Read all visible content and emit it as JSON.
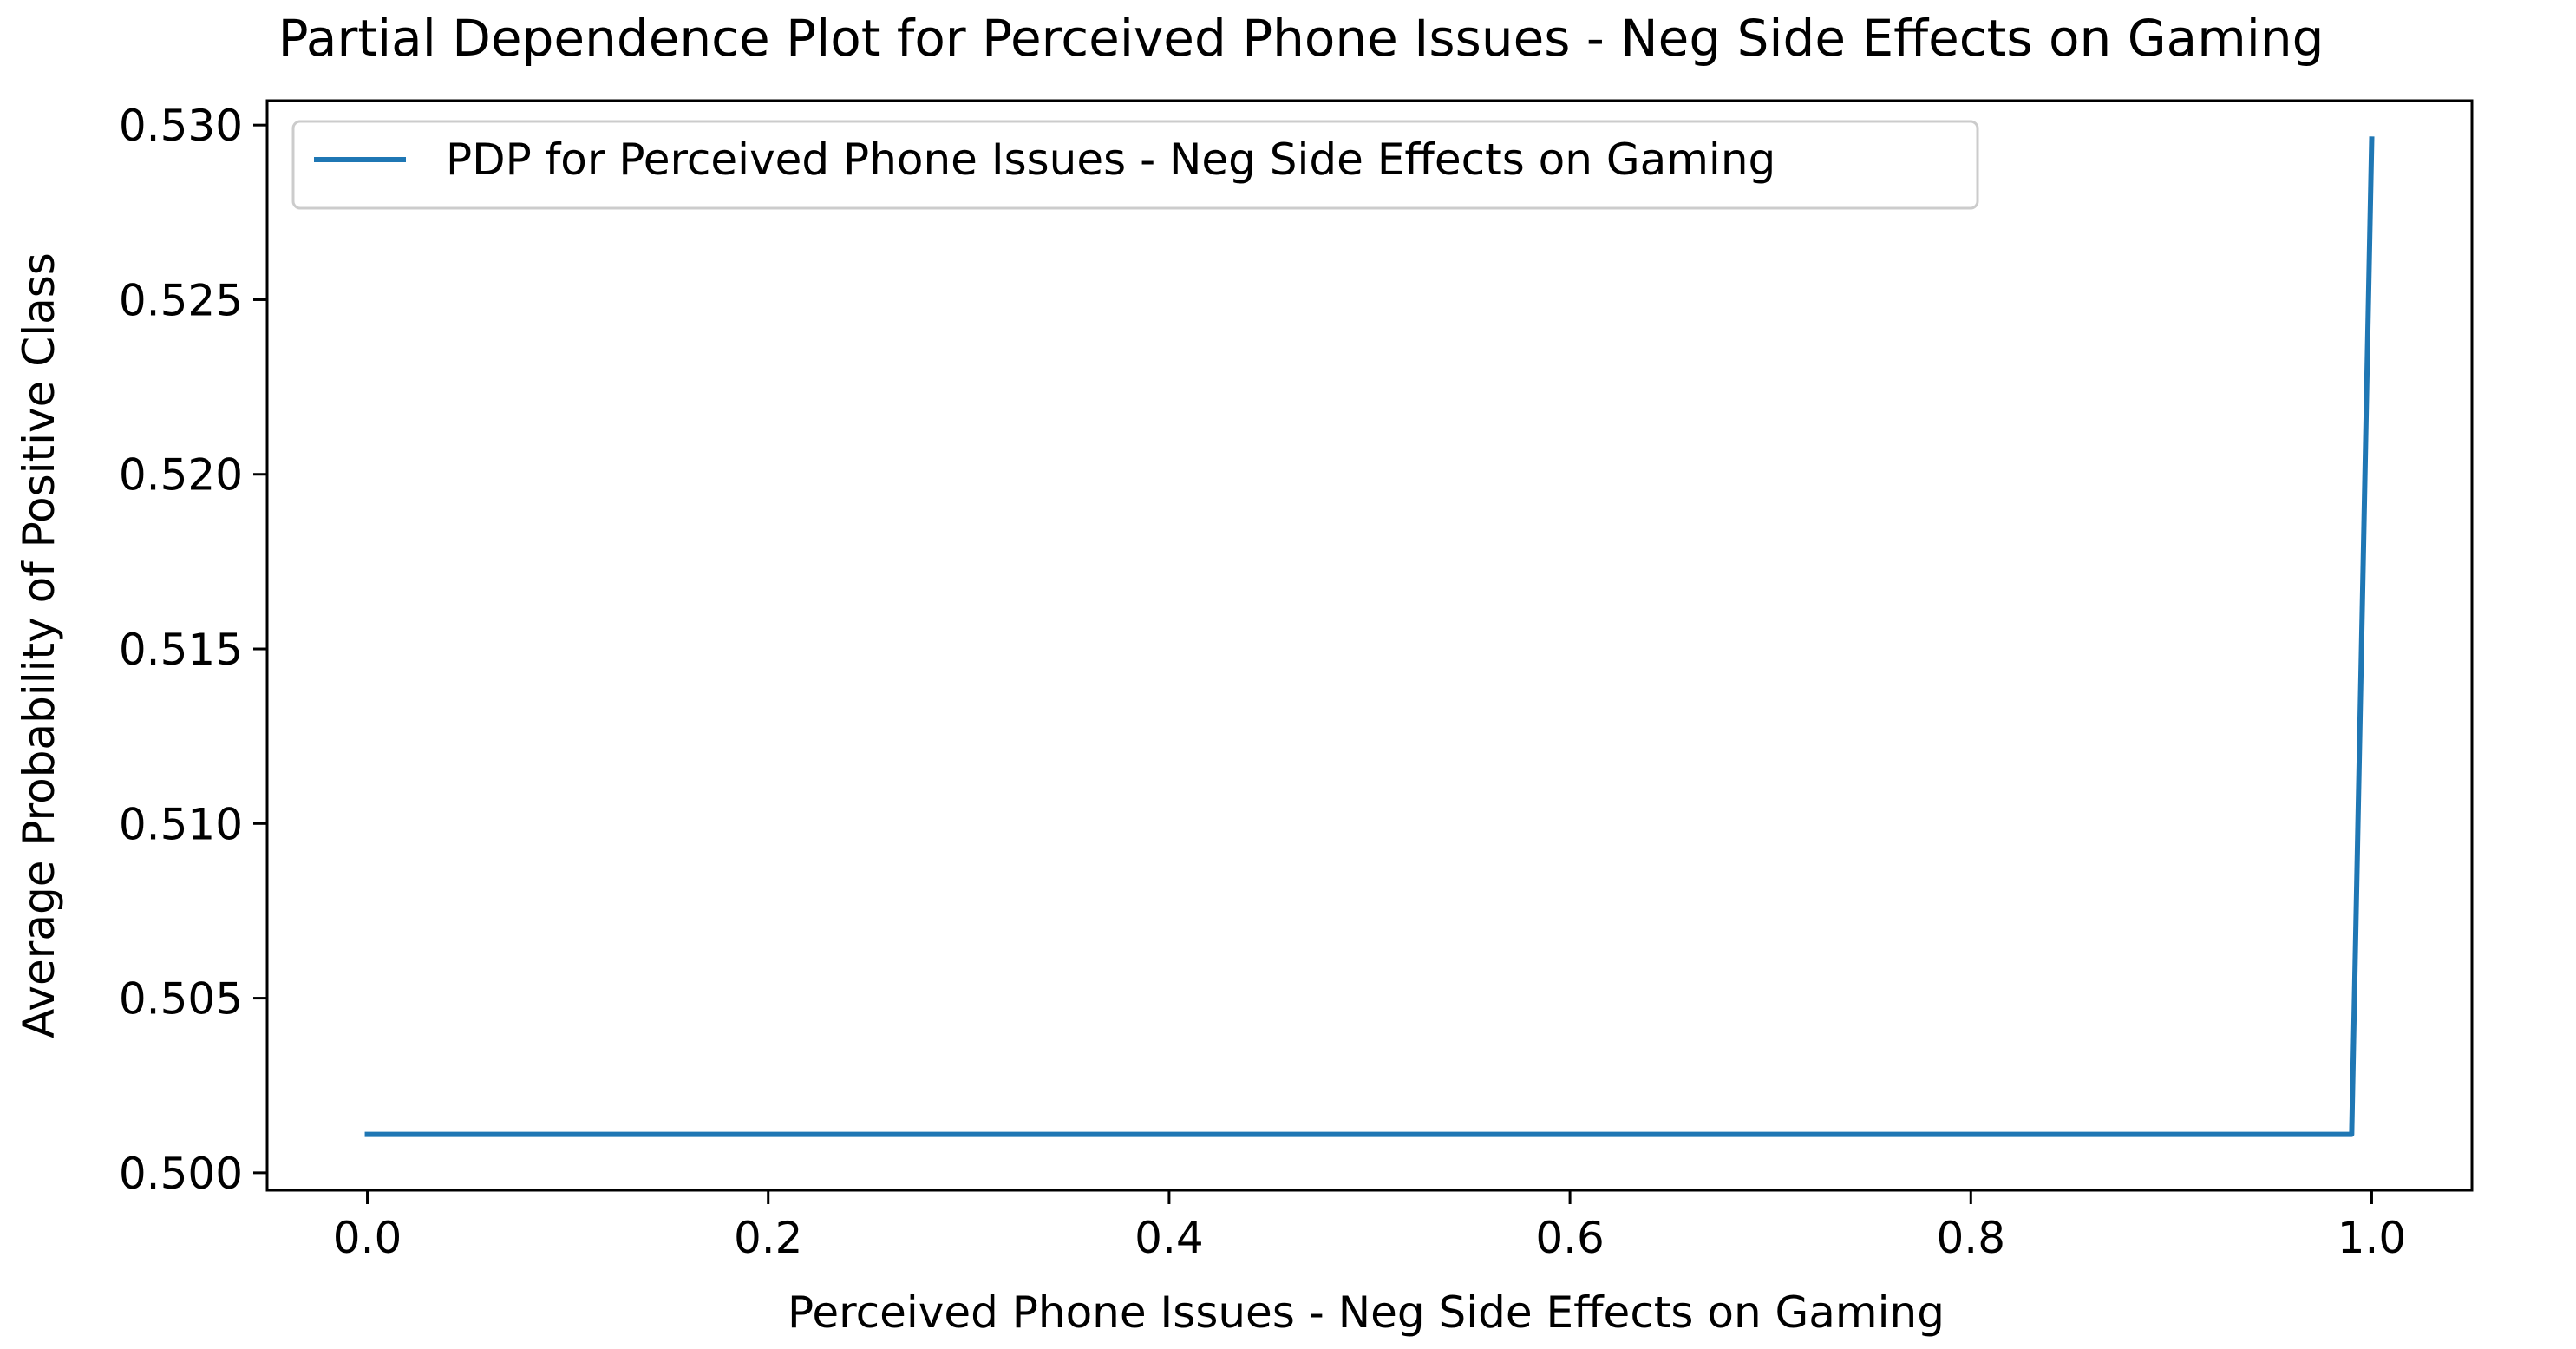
{
  "chart_data": {
    "type": "line",
    "title": "Partial Dependence Plot for Perceived Phone Issues - Neg Side Effects on Gaming",
    "xlabel": "Perceived Phone Issues - Neg Side Effects on Gaming",
    "ylabel": "Average Probability of Positive Class",
    "xlim": [
      -0.05,
      1.05
    ],
    "ylim": [
      0.4995,
      0.5307
    ],
    "xticks": [
      {
        "value": 0.0,
        "label": "0.0"
      },
      {
        "value": 0.2,
        "label": "0.2"
      },
      {
        "value": 0.4,
        "label": "0.4"
      },
      {
        "value": 0.6,
        "label": "0.6"
      },
      {
        "value": 0.8,
        "label": "0.8"
      },
      {
        "value": 1.0,
        "label": "1.0"
      }
    ],
    "yticks": [
      {
        "value": 0.5,
        "label": "0.500"
      },
      {
        "value": 0.505,
        "label": "0.505"
      },
      {
        "value": 0.51,
        "label": "0.510"
      },
      {
        "value": 0.515,
        "label": "0.515"
      },
      {
        "value": 0.52,
        "label": "0.520"
      },
      {
        "value": 0.525,
        "label": "0.525"
      },
      {
        "value": 0.53,
        "label": "0.530"
      }
    ],
    "grid": false,
    "legend_position": "top-left",
    "series": [
      {
        "name": "PDP for Perceived Phone Issues - Neg Side Effects on Gaming",
        "color": "#1f77b4",
        "x": [
          0.0,
          0.99,
          1.0
        ],
        "y": [
          0.5011,
          0.5011,
          0.5296
        ]
      }
    ]
  }
}
